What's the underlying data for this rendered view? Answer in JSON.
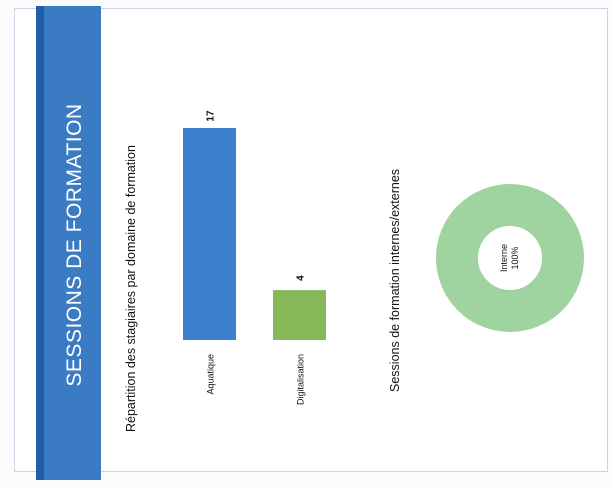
{
  "banner": {
    "title": "SESSIONS DE FORMATION"
  },
  "colors": {
    "banner": "#3b7bc3",
    "banner_edge": "#1f5fa8",
    "bar_aquatique": "#3f7fd0",
    "bar_digital": "#86b85a",
    "donut": "#9fd3a0"
  },
  "bar_chart": {
    "title": "Répartition des stagiaires par domaine de formation"
  },
  "donut_chart": {
    "title": "Sessions de formation internes/externes",
    "center_label": "Interne",
    "center_value": "100%"
  },
  "chart_data": [
    {
      "type": "bar",
      "title": "Répartition des stagiaires par domaine de formation",
      "categories": [
        "Aquatique",
        "Digitalisation"
      ],
      "values": [
        17,
        4
      ],
      "data_labels": [
        "17",
        "4"
      ],
      "ylim": [
        0,
        17
      ],
      "grid": false,
      "orientation": "vertical bars, page rotated 90°"
    },
    {
      "type": "pie",
      "title": "Sessions de formation internes/externes",
      "categories": [
        "Interne"
      ],
      "values": [
        100
      ],
      "data_labels": [
        "Interne 100%"
      ],
      "donut": true,
      "legend": "none"
    }
  ]
}
